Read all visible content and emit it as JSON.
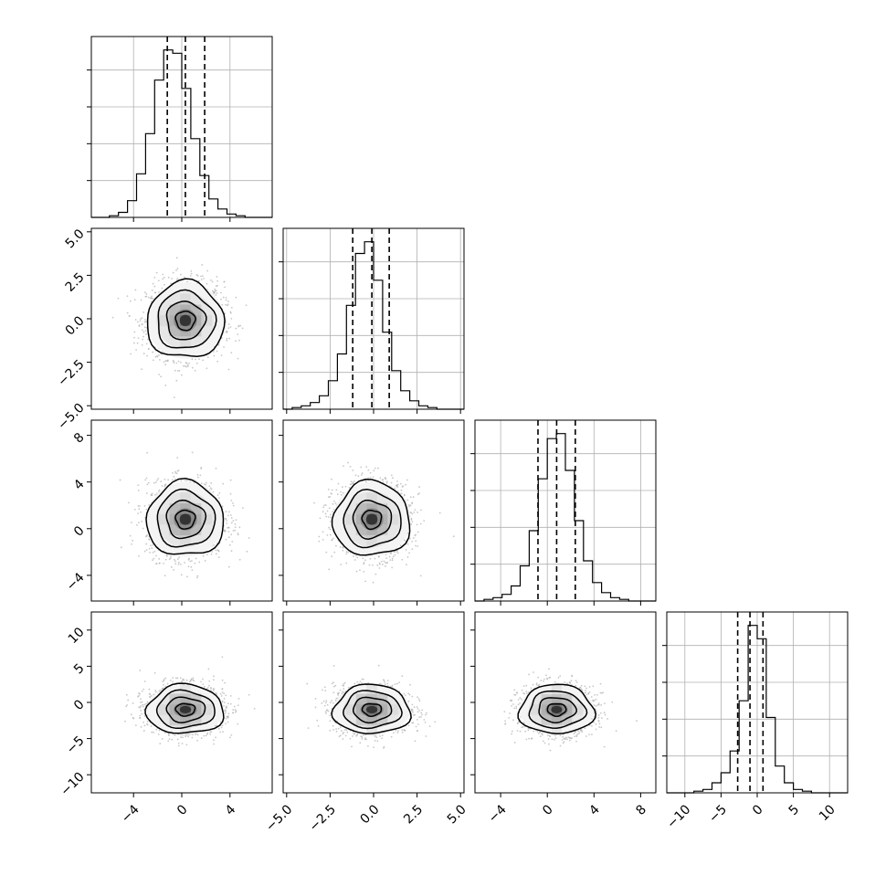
{
  "chart_data": {
    "type": "corner",
    "n_params": 4,
    "grid": true,
    "params": [
      {
        "mean": 0.3,
        "sigma": 1.6,
        "range": [
          -7.5,
          7.5
        ],
        "ticks": [
          -4,
          0,
          4
        ],
        "tick_labels": [
          "−4",
          "0",
          "4"
        ],
        "quantiles": [
          -1.2,
          0.3,
          1.9
        ],
        "hist": [
          0,
          0,
          0.01,
          0.03,
          0.1,
          0.26,
          0.5,
          0.82,
          1.0,
          0.98,
          0.77,
          0.47,
          0.25,
          0.11,
          0.05,
          0.02,
          0.01,
          0,
          0,
          0
        ]
      },
      {
        "mean": -0.1,
        "sigma": 1.1,
        "range": [
          -5.2,
          5.2
        ],
        "ticks": [
          -5.0,
          -2.5,
          0.0,
          2.5,
          5.0
        ],
        "tick_labels": [
          "−5.0",
          "−2.5",
          "0.0",
          "2.5",
          "5.0"
        ],
        "quantiles": [
          -1.2,
          -0.1,
          0.9
        ],
        "hist": [
          0,
          0.01,
          0.02,
          0.04,
          0.08,
          0.17,
          0.33,
          0.62,
          0.93,
          1.0,
          0.77,
          0.46,
          0.23,
          0.11,
          0.05,
          0.02,
          0.01,
          0,
          0,
          0
        ]
      },
      {
        "mean": 0.8,
        "sigma": 1.6,
        "range": [
          -6.2,
          9.3
        ],
        "ticks": [
          -4,
          0,
          4,
          8
        ],
        "tick_labels": [
          "−4",
          "0",
          "4",
          "8"
        ],
        "quantiles": [
          -0.8,
          0.8,
          2.4
        ],
        "hist": [
          0,
          0.01,
          0.02,
          0.04,
          0.09,
          0.21,
          0.42,
          0.73,
          0.97,
          1.0,
          0.78,
          0.48,
          0.24,
          0.11,
          0.05,
          0.02,
          0.01,
          0,
          0,
          0
        ]
      },
      {
        "mean": -1.0,
        "sigma": 1.7,
        "range": [
          -12.5,
          12.5
        ],
        "ticks": [
          -10,
          -5,
          0,
          5,
          10
        ],
        "tick_labels": [
          "−10",
          "−5",
          "0",
          "5",
          "10"
        ],
        "quantiles": [
          -2.7,
          -1.0,
          0.8
        ],
        "hist": [
          0,
          0,
          0,
          0.01,
          0.02,
          0.06,
          0.12,
          0.25,
          0.55,
          1.0,
          0.92,
          0.45,
          0.16,
          0.06,
          0.02,
          0.01,
          0,
          0,
          0,
          0
        ]
      }
    ],
    "y_tick_labels_2d": [
      [
        "5.0",
        "2.5",
        "0.0",
        "−2.5",
        "−5.0"
      ],
      [
        "8",
        "4",
        "0",
        "−4"
      ],
      [
        "10",
        "5",
        "0",
        "−5",
        "−10"
      ]
    ],
    "colors": {
      "line": "#000000",
      "points": "#b0b0b0",
      "grid": "#b0b0b0"
    }
  }
}
